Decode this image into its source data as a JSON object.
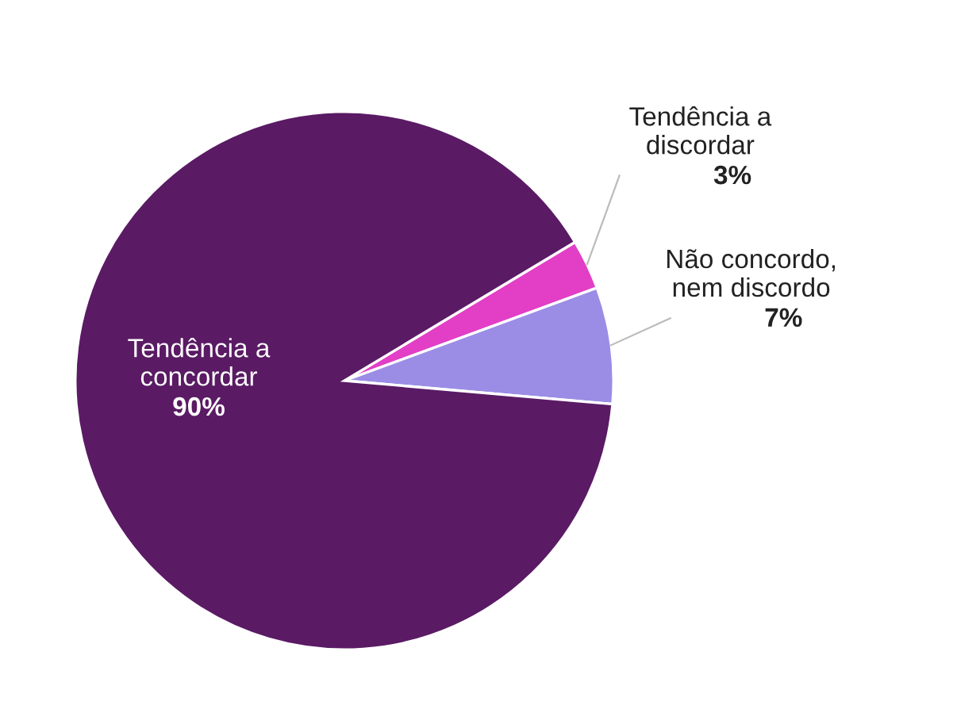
{
  "chart_data": {
    "type": "pie",
    "categories": [
      "Tendência a\ndiscordar",
      "Não concordo,\nnem discordo",
      "Tendência a\nconcordar"
    ],
    "values": [
      3,
      7,
      90
    ],
    "colors": [
      "#e23fc6",
      "#9b8de6",
      "#5a1a64"
    ],
    "value_labels": [
      "3%",
      "7%",
      "90%"
    ],
    "legend": false
  }
}
